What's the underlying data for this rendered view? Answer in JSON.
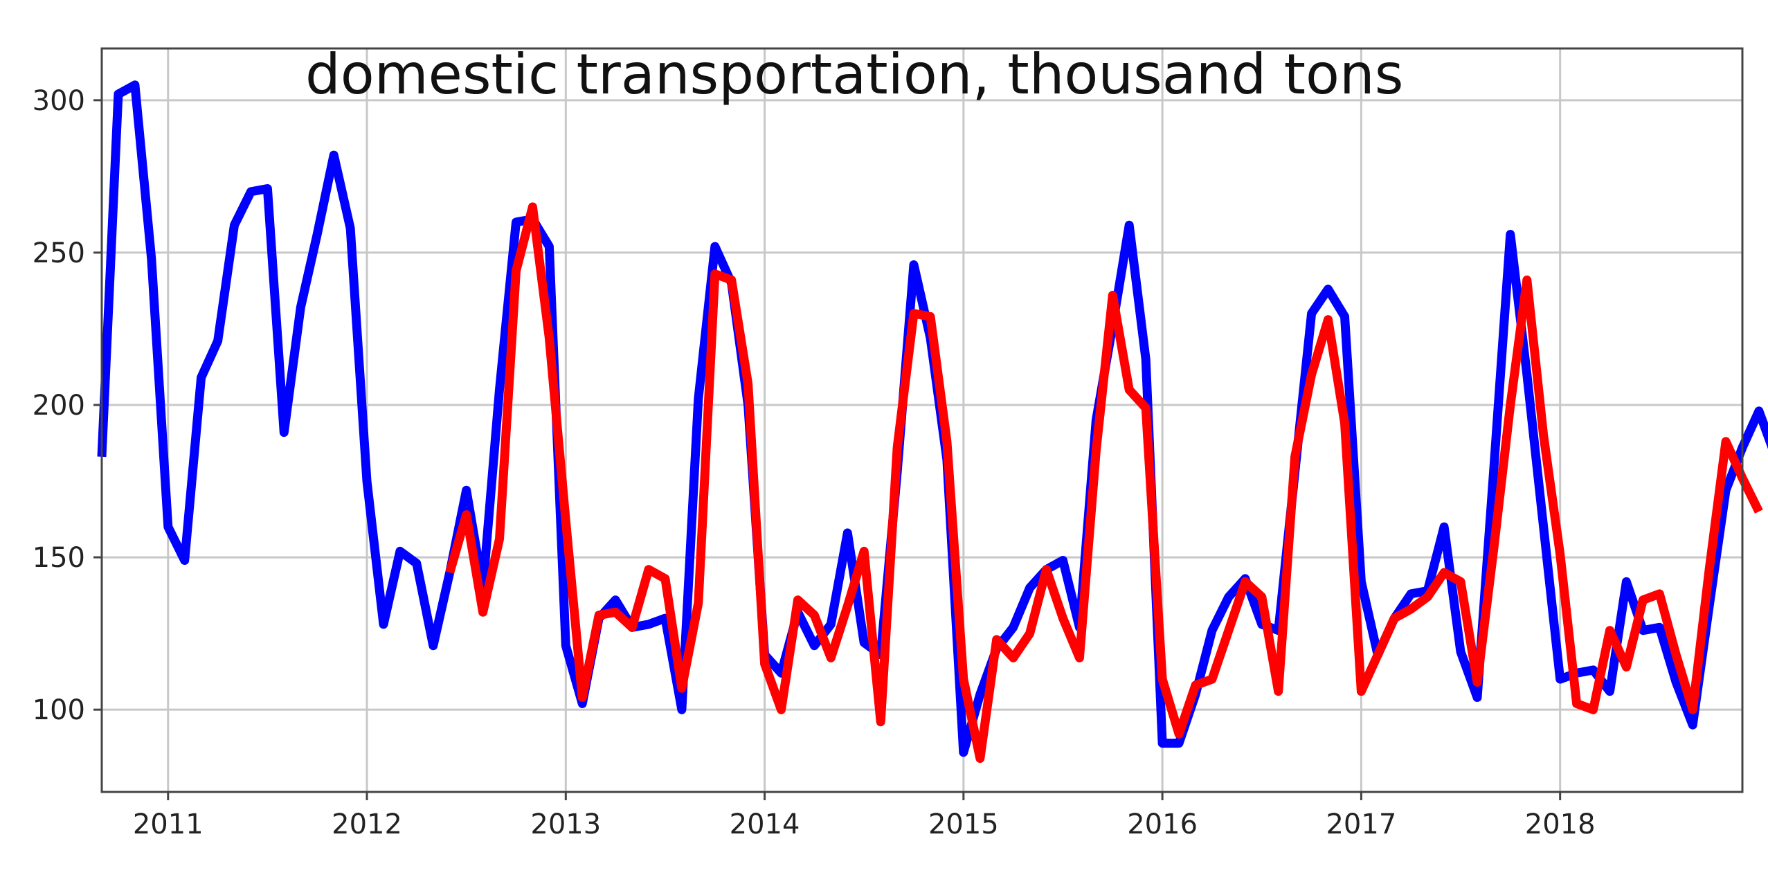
{
  "chart_data": {
    "type": "line",
    "title": "domestic transportation, thousand tons",
    "xlabel": "",
    "ylabel": "",
    "x_start": "2010-09",
    "xlim": [
      "2010-09",
      "2018-12"
    ],
    "ylim": [
      73,
      317
    ],
    "x_ticks": [
      "2011",
      "2012",
      "2013",
      "2014",
      "2015",
      "2016",
      "2017",
      "2018"
    ],
    "y_ticks": [
      100,
      150,
      200,
      250,
      300
    ],
    "grid": true,
    "series": [
      {
        "color": "#0000ff",
        "start": "2010-09",
        "values": [
          183,
          302,
          305,
          248,
          160,
          149,
          209,
          221,
          259,
          270,
          271,
          191,
          232,
          256,
          282,
          258,
          175,
          128,
          152,
          148,
          121,
          145,
          172,
          140,
          205,
          260,
          261,
          252,
          121,
          102,
          130,
          136,
          127,
          128,
          130,
          100,
          202,
          252,
          240,
          200,
          118,
          112,
          132,
          121,
          128,
          158,
          122,
          118,
          178,
          246,
          222,
          182,
          86,
          105,
          120,
          127,
          140,
          146,
          149,
          127,
          195,
          226,
          259,
          215,
          89,
          89,
          105,
          126,
          137,
          143,
          128,
          126,
          178,
          230,
          238,
          229,
          142,
          118,
          130,
          138,
          139,
          160,
          119,
          104,
          179,
          256,
          210,
          160,
          110,
          112,
          113,
          106,
          142,
          126,
          127,
          109,
          95,
          134,
          172,
          186,
          198,
          183
        ]
      },
      {
        "color": "#ff0000",
        "start": "2012-06",
        "values": [
          145,
          164,
          132,
          156,
          244,
          265,
          222,
          162,
          104,
          131,
          132,
          127,
          146,
          143,
          107,
          135,
          243,
          241,
          207,
          115,
          100,
          136,
          131,
          117,
          134,
          152,
          96,
          186,
          230,
          229,
          188,
          110,
          84,
          123,
          117,
          125,
          146,
          130,
          117,
          185,
          236,
          205,
          199,
          110,
          92,
          108,
          110,
          126,
          142,
          137,
          106,
          183,
          210,
          228,
          194,
          106,
          118,
          130,
          133,
          137,
          145,
          142,
          109,
          153,
          200,
          241,
          190,
          151,
          102,
          100,
          126,
          114,
          136,
          138,
          118,
          100,
          146,
          188,
          176,
          165
        ]
      }
    ]
  }
}
